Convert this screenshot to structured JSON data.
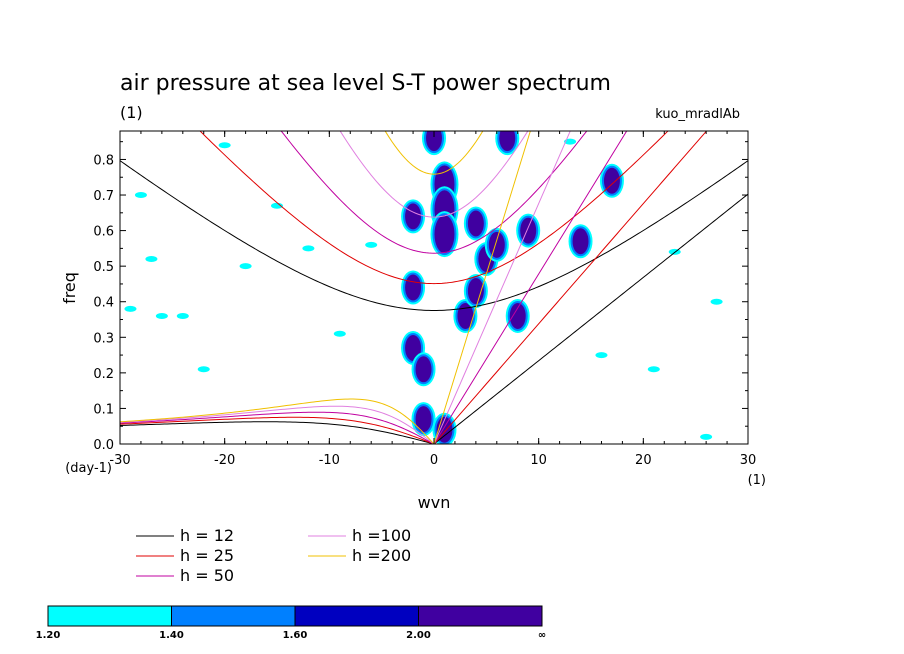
{
  "chart_data": {
    "type": "contour",
    "title": "air pressure at sea level S-T power spectrum",
    "subtitle_left": "(1)",
    "subtitle_right": "kuo_mradlAb",
    "xlabel": "wvn",
    "ylabel": "freq",
    "x_unit": "(1)",
    "y_unit": "(day-1)",
    "xlim": [
      -30,
      30
    ],
    "ylim": [
      0,
      0.88
    ],
    "x_ticks": [
      -30,
      -20,
      -10,
      0,
      10,
      20,
      30
    ],
    "y_ticks": [
      0.0,
      0.1,
      0.2,
      0.3,
      0.4,
      0.5,
      0.6,
      0.7,
      0.8
    ],
    "dispersion_curves": [
      {
        "label": "h = 12",
        "h": 12,
        "color": "#000000"
      },
      {
        "label": "h = 25",
        "h": 25,
        "color": "#e00000"
      },
      {
        "label": "h = 50",
        "h": 50,
        "color": "#c000a0"
      },
      {
        "label": "h =100",
        "h": 100,
        "color": "#e080e0"
      },
      {
        "label": "h =200",
        "h": 200,
        "color": "#f0c000"
      }
    ],
    "colorbar": {
      "levels": [
        "1.20",
        "1.40",
        "1.60",
        "2.00",
        "∞"
      ],
      "colors": [
        "#00ffff",
        "#0080ff",
        "#0000c0",
        "#4000a0"
      ]
    },
    "power_blobs": [
      {
        "x": -2,
        "y": 0.44,
        "r": 1
      },
      {
        "x": -2,
        "y": 0.64,
        "r": 1
      },
      {
        "x": -2,
        "y": 0.27,
        "r": 1
      },
      {
        "x": -1,
        "y": 0.21,
        "r": 1
      },
      {
        "x": -1,
        "y": 0.07,
        "r": 1
      },
      {
        "x": 1,
        "y": 0.73,
        "r": 2
      },
      {
        "x": 1,
        "y": 0.66,
        "r": 2
      },
      {
        "x": 1,
        "y": 0.59,
        "r": 2
      },
      {
        "x": 1,
        "y": 0.04,
        "r": 1
      },
      {
        "x": 3,
        "y": 0.36,
        "r": 1
      },
      {
        "x": 4,
        "y": 0.43,
        "r": 1
      },
      {
        "x": 4,
        "y": 0.62,
        "r": 1
      },
      {
        "x": 5,
        "y": 0.52,
        "r": 1
      },
      {
        "x": 6,
        "y": 0.56,
        "r": 1
      },
      {
        "x": 8,
        "y": 0.36,
        "r": 1
      },
      {
        "x": 9,
        "y": 0.6,
        "r": 1
      },
      {
        "x": 0,
        "y": 0.86,
        "r": 1
      },
      {
        "x": 7,
        "y": 0.86,
        "r": 1
      },
      {
        "x": 14,
        "y": 0.57,
        "r": 1
      },
      {
        "x": 17,
        "y": 0.74,
        "r": 1
      }
    ],
    "noise_patches": [
      {
        "x": -29,
        "y": 0.38
      },
      {
        "x": -28,
        "y": 0.7
      },
      {
        "x": -26,
        "y": 0.36
      },
      {
        "x": -24,
        "y": 0.36
      },
      {
        "x": -22,
        "y": 0.21
      },
      {
        "x": -20,
        "y": 0.84
      },
      {
        "x": -15,
        "y": 0.67
      },
      {
        "x": -12,
        "y": 0.55
      },
      {
        "x": -9,
        "y": 0.31
      },
      {
        "x": -6,
        "y": 0.56
      },
      {
        "x": 13,
        "y": 0.85
      },
      {
        "x": 16,
        "y": 0.25
      },
      {
        "x": 21,
        "y": 0.21
      },
      {
        "x": 23,
        "y": 0.54
      },
      {
        "x": 26,
        "y": 0.02
      },
      {
        "x": 27,
        "y": 0.4
      },
      {
        "x": -18,
        "y": 0.5
      },
      {
        "x": -27,
        "y": 0.52
      }
    ]
  },
  "legend": {
    "entries": [
      "h = 12",
      "h = 25",
      "h = 50",
      "h =100",
      "h =200"
    ]
  }
}
